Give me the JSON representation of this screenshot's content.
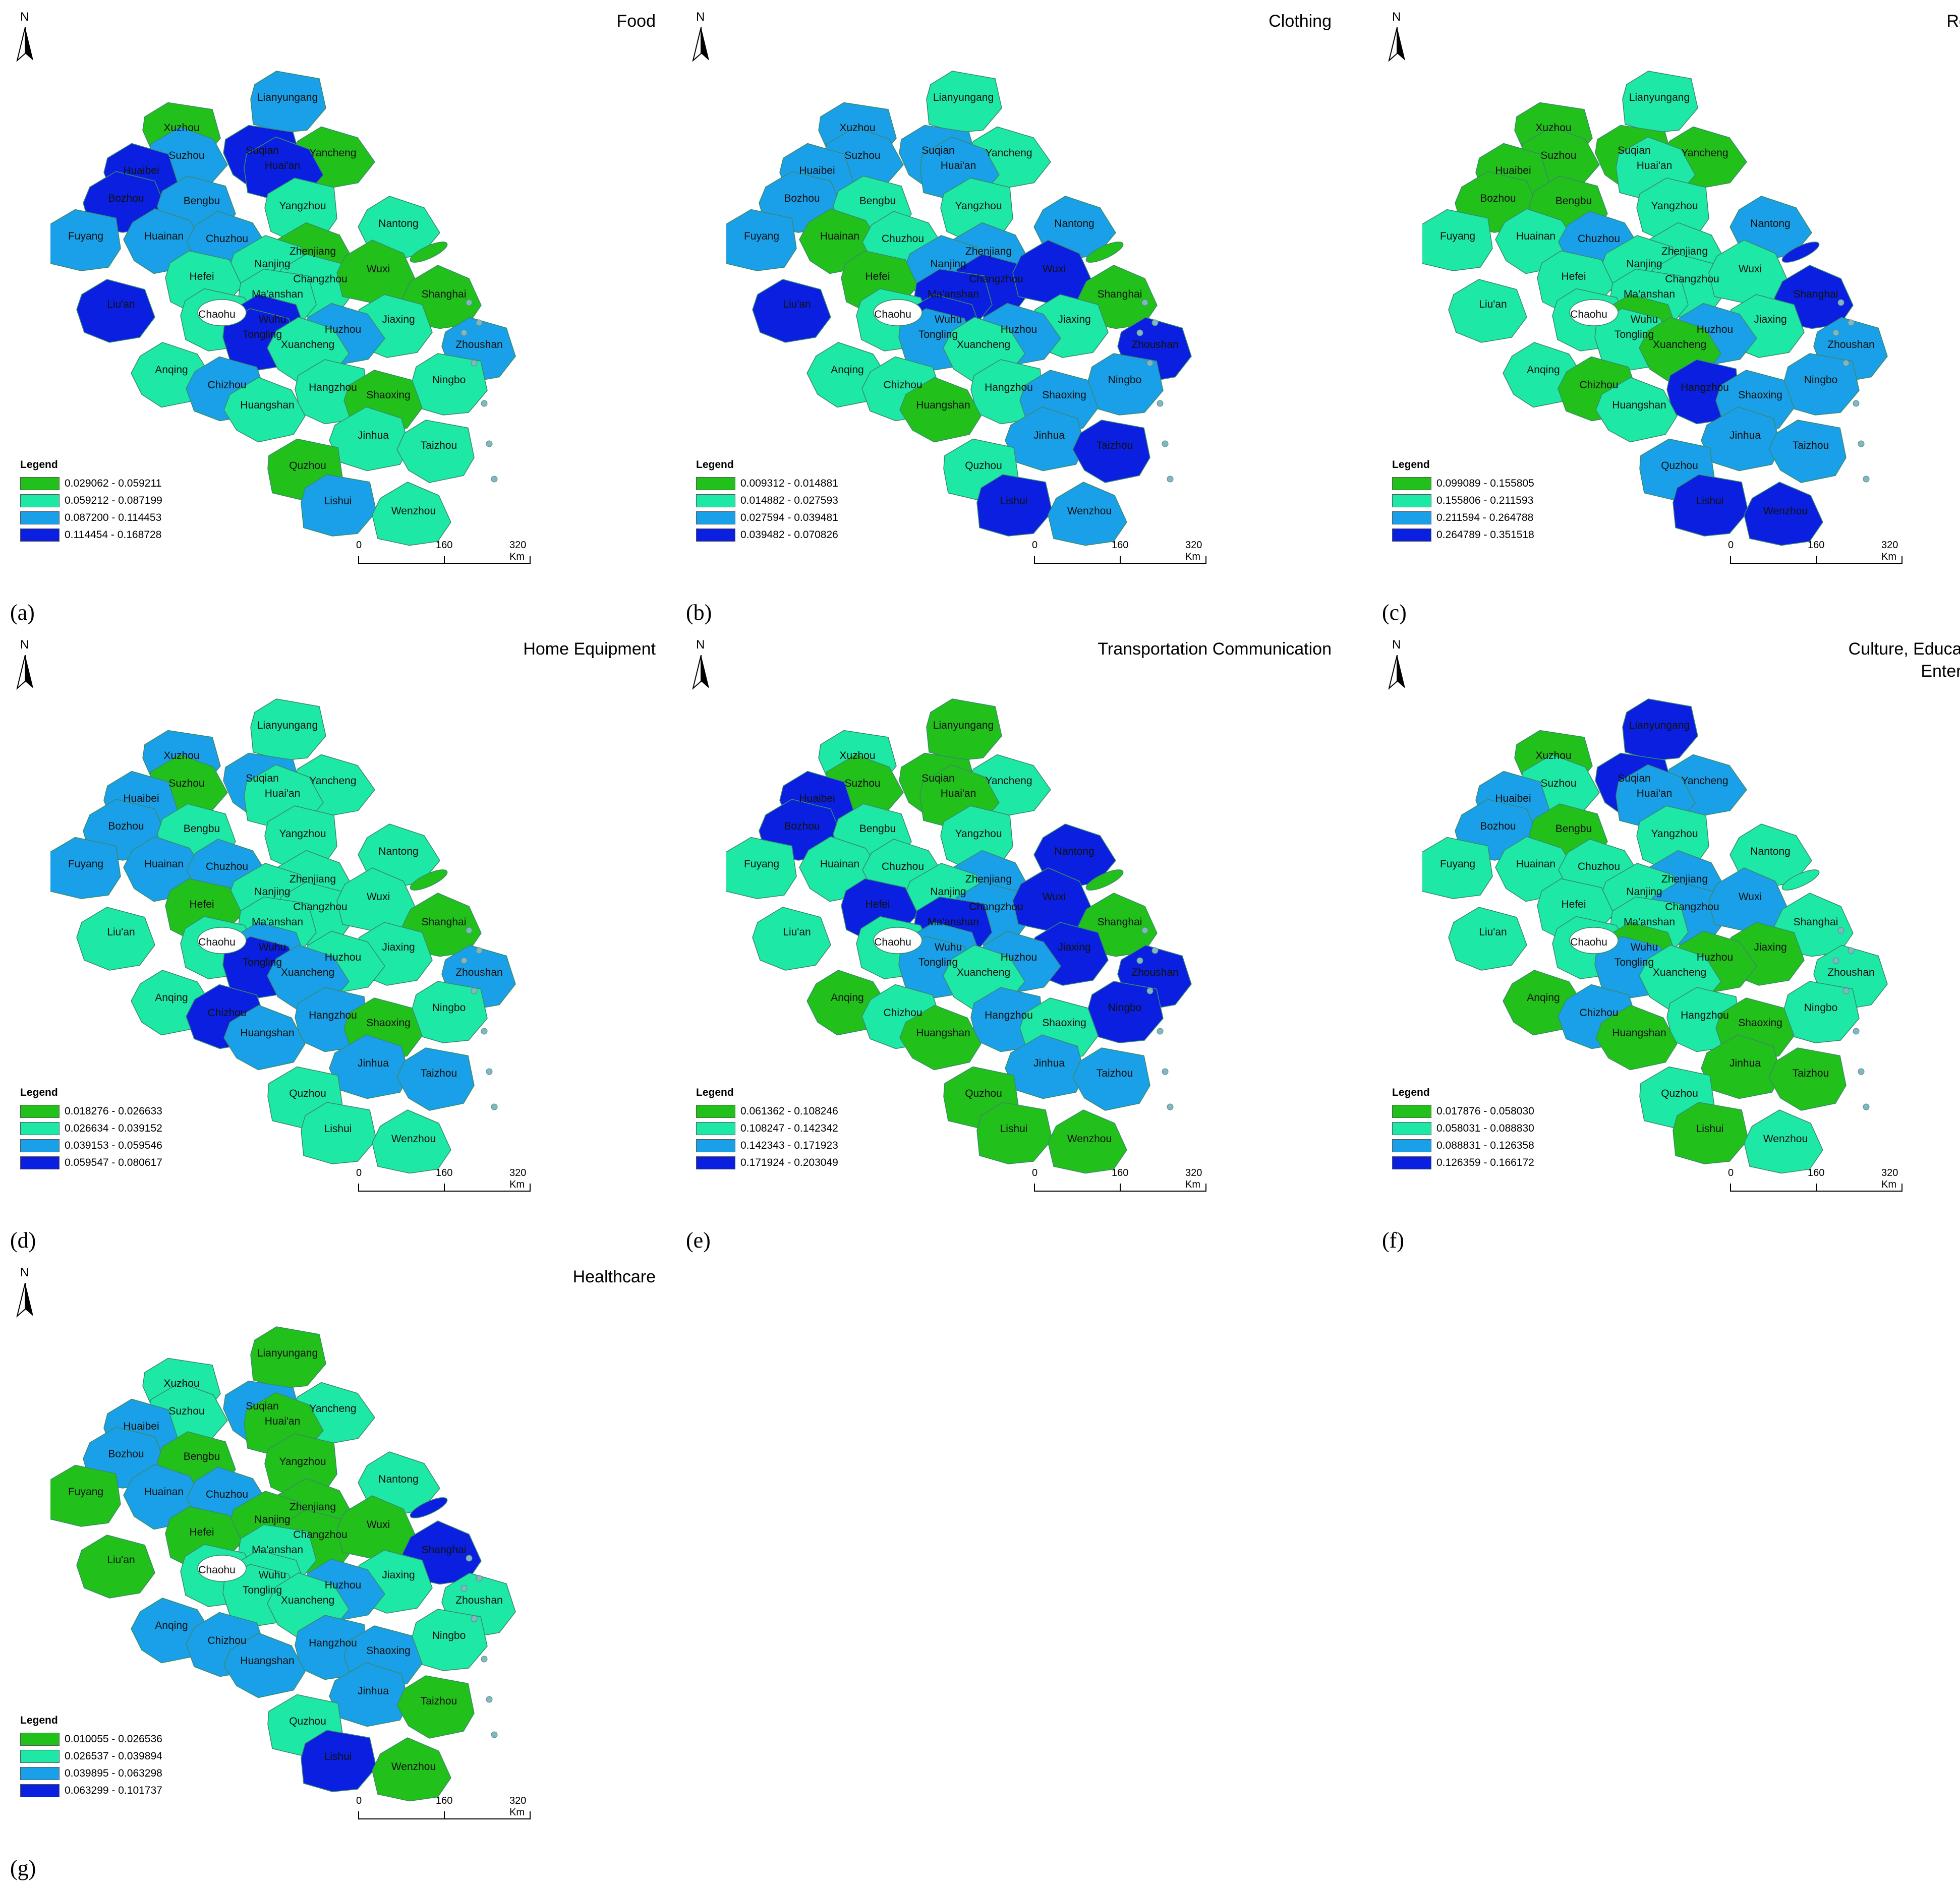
{
  "colors": {
    "c1": "#22c01b",
    "c2": "#1ee8a6",
    "c3": "#1aa0e8",
    "c4": "#0a1fe0",
    "outline": "#3a8a6a",
    "water": "#ffffff"
  },
  "north_label": "N",
  "legend_title": "Legend",
  "scale": {
    "t0": "0",
    "t1": "160",
    "t2": "320 Km"
  },
  "city_names": [
    "Lianyungang",
    "Xuzhou",
    "Suqian",
    "Yancheng",
    "Suzhou",
    "Huai'an",
    "Huaibei",
    "Bozhou",
    "Bengbu",
    "Yangzhou",
    "Nantong",
    "Fuyang",
    "Huainan",
    "Chuzhou",
    "Zhenjiang",
    "Nanjing",
    "Hefei",
    "Changzhou",
    "Wuxi",
    "Shanghai",
    "Ma'anshan",
    "Liu'an",
    "Chaohu",
    "Wuhu",
    "Jiaxing",
    "Huzhou",
    "Tongling",
    "Xuancheng",
    "Zhoushan",
    "Anqing",
    "Chizhou",
    "Hangzhou",
    "Ningbo",
    "Shaoxing",
    "Huangshan",
    "Jinhua",
    "Taizhou",
    "Quzhou",
    "Lishui",
    "Wenzhou"
  ],
  "panels": [
    {
      "id": "a",
      "label": "(a)",
      "title": "Food",
      "legend": [
        "0.029062 - 0.059211",
        "0.059212 - 0.087199",
        "0.087200 - 0.114453",
        "0.114454 - 0.168728"
      ],
      "classes": {
        "Lianyungang": 3,
        "Xuzhou": 1,
        "Suqian": 4,
        "Yancheng": 1,
        "Suzhou": 3,
        "Huai'an": 4,
        "Huaibei": 4,
        "Bozhou": 4,
        "Bengbu": 3,
        "Yangzhou": 2,
        "Nantong": 2,
        "Fuyang": 3,
        "Huainan": 3,
        "Chuzhou": 3,
        "Zhenjiang": 1,
        "Nanjing": 2,
        "Hefei": 2,
        "Changzhou": 2,
        "Wuxi": 1,
        "Shanghai": 1,
        "Ma'anshan": 2,
        "Liu'an": 4,
        "Chaohu": 2,
        "Wuhu": 4,
        "Jiaxing": 2,
        "Huzhou": 3,
        "Tongling": 4,
        "Xuancheng": 2,
        "Zhoushan": 3,
        "Anqing": 2,
        "Chizhou": 3,
        "Hangzhou": 2,
        "Ningbo": 2,
        "Shaoxing": 1,
        "Huangshan": 2,
        "Jinhua": 2,
        "Taizhou": 2,
        "Quzhou": 1,
        "Lishui": 3,
        "Wenzhou": 2
      }
    },
    {
      "id": "b",
      "label": "(b)",
      "title": "Clothing",
      "legend": [
        "0.009312 - 0.014881",
        "0.014882 - 0.027593",
        "0.027594 - 0.039481",
        "0.039482 - 0.070826"
      ],
      "classes": {
        "Lianyungang": 2,
        "Xuzhou": 3,
        "Suqian": 3,
        "Yancheng": 2,
        "Suzhou": 3,
        "Huai'an": 3,
        "Huaibei": 3,
        "Bozhou": 3,
        "Bengbu": 2,
        "Yangzhou": 2,
        "Nantong": 3,
        "Fuyang": 3,
        "Huainan": 1,
        "Chuzhou": 2,
        "Zhenjiang": 3,
        "Nanjing": 3,
        "Hefei": 1,
        "Changzhou": 4,
        "Wuxi": 4,
        "Shanghai": 1,
        "Ma'anshan": 4,
        "Liu'an": 4,
        "Chaohu": 2,
        "Wuhu": 4,
        "Jiaxing": 2,
        "Huzhou": 3,
        "Tongling": 3,
        "Xuancheng": 2,
        "Zhoushan": 4,
        "Anqing": 2,
        "Chizhou": 2,
        "Hangzhou": 2,
        "Ningbo": 3,
        "Shaoxing": 3,
        "Huangshan": 1,
        "Jinhua": 3,
        "Taizhou": 4,
        "Quzhou": 2,
        "Lishui": 4,
        "Wenzhou": 3
      }
    },
    {
      "id": "c",
      "label": "(c)",
      "title": "Residence",
      "legend": [
        "0.099089 - 0.155805",
        "0.155806 - 0.211593",
        "0.211594 - 0.264788",
        "0.264789 - 0.351518"
      ],
      "classes": {
        "Lianyungang": 2,
        "Xuzhou": 1,
        "Suqian": 1,
        "Yancheng": 1,
        "Suzhou": 1,
        "Huai'an": 2,
        "Huaibei": 1,
        "Bozhou": 1,
        "Bengbu": 1,
        "Yangzhou": 2,
        "Nantong": 3,
        "Fuyang": 2,
        "Huainan": 2,
        "Chuzhou": 3,
        "Zhenjiang": 2,
        "Nanjing": 2,
        "Hefei": 2,
        "Changzhou": 2,
        "Wuxi": 2,
        "Shanghai": 4,
        "Ma'anshan": 2,
        "Liu'an": 2,
        "Chaohu": 2,
        "Wuhu": 1,
        "Jiaxing": 2,
        "Huzhou": 3,
        "Tongling": 2,
        "Xuancheng": 1,
        "Zhoushan": 3,
        "Anqing": 2,
        "Chizhou": 1,
        "Hangzhou": 4,
        "Ningbo": 3,
        "Shaoxing": 3,
        "Huangshan": 2,
        "Jinhua": 3,
        "Taizhou": 3,
        "Quzhou": 3,
        "Lishui": 4,
        "Wenzhou": 4
      }
    },
    {
      "id": "d",
      "label": "(d)",
      "title": "Home Equipment",
      "legend": [
        "0.018276 - 0.026633",
        "0.026634 - 0.039152",
        "0.039153 - 0.059546",
        "0.059547 - 0.080617"
      ],
      "classes": {
        "Lianyungang": 2,
        "Xuzhou": 3,
        "Suqian": 3,
        "Yancheng": 2,
        "Suzhou": 1,
        "Huai'an": 2,
        "Huaibei": 3,
        "Bozhou": 3,
        "Bengbu": 2,
        "Yangzhou": 2,
        "Nantong": 2,
        "Fuyang": 3,
        "Huainan": 3,
        "Chuzhou": 3,
        "Zhenjiang": 2,
        "Nanjing": 2,
        "Hefei": 1,
        "Changzhou": 2,
        "Wuxi": 2,
        "Shanghai": 1,
        "Ma'anshan": 2,
        "Liu'an": 2,
        "Chaohu": 2,
        "Wuhu": 3,
        "Jiaxing": 2,
        "Huzhou": 2,
        "Tongling": 4,
        "Xuancheng": 3,
        "Zhoushan": 3,
        "Anqing": 2,
        "Chizhou": 4,
        "Hangzhou": 3,
        "Ningbo": 2,
        "Shaoxing": 1,
        "Huangshan": 3,
        "Jinhua": 3,
        "Taizhou": 3,
        "Quzhou": 2,
        "Lishui": 2,
        "Wenzhou": 2
      }
    },
    {
      "id": "e",
      "label": "(e)",
      "title": "Transportation Communication",
      "legend": [
        "0.061362 - 0.108246",
        "0.108247 - 0.142342",
        "0.142343 - 0.171923",
        "0.171924 - 0.203049"
      ],
      "classes": {
        "Lianyungang": 1,
        "Xuzhou": 2,
        "Suqian": 1,
        "Yancheng": 2,
        "Suzhou": 1,
        "Huai'an": 1,
        "Huaibei": 4,
        "Bozhou": 4,
        "Bengbu": 2,
        "Yangzhou": 2,
        "Nantong": 4,
        "Fuyang": 2,
        "Huainan": 2,
        "Chuzhou": 2,
        "Zhenjiang": 3,
        "Nanjing": 2,
        "Hefei": 4,
        "Changzhou": 3,
        "Wuxi": 4,
        "Shanghai": 1,
        "Ma'anshan": 4,
        "Liu'an": 2,
        "Chaohu": 2,
        "Wuhu": 3,
        "Jiaxing": 4,
        "Huzhou": 3,
        "Tongling": 3,
        "Xuancheng": 2,
        "Zhoushan": 4,
        "Anqing": 1,
        "Chizhou": 2,
        "Hangzhou": 3,
        "Ningbo": 4,
        "Shaoxing": 2,
        "Huangshan": 1,
        "Jinhua": 3,
        "Taizhou": 3,
        "Quzhou": 1,
        "Lishui": 1,
        "Wenzhou": 1
      }
    },
    {
      "id": "f",
      "label": "(f)",
      "title": "Culture, Education, and Entertainment",
      "legend": [
        "0.017876 - 0.058030",
        "0.058031 - 0.088830",
        "0.088831 - 0.126358",
        "0.126359 - 0.166172"
      ],
      "classes": {
        "Lianyungang": 4,
        "Xuzhou": 1,
        "Suqian": 4,
        "Yancheng": 3,
        "Suzhou": 2,
        "Huai'an": 3,
        "Huaibei": 3,
        "Bozhou": 3,
        "Bengbu": 1,
        "Yangzhou": 2,
        "Nantong": 2,
        "Fuyang": 2,
        "Huainan": 2,
        "Chuzhou": 2,
        "Zhenjiang": 3,
        "Nanjing": 2,
        "Hefei": 2,
        "Changzhou": 3,
        "Wuxi": 3,
        "Shanghai": 2,
        "Ma'anshan": 2,
        "Liu'an": 2,
        "Chaohu": 2,
        "Wuhu": 1,
        "Jiaxing": 1,
        "Huzhou": 1,
        "Tongling": 3,
        "Xuancheng": 2,
        "Zhoushan": 2,
        "Anqing": 1,
        "Chizhou": 3,
        "Hangzhou": 2,
        "Ningbo": 2,
        "Shaoxing": 1,
        "Huangshan": 1,
        "Jinhua": 1,
        "Taizhou": 1,
        "Quzhou": 2,
        "Lishui": 1,
        "Wenzhou": 2
      }
    },
    {
      "id": "g",
      "label": "(g)",
      "title": "Healthcare",
      "legend": [
        "0.010055 - 0.026536",
        "0.026537 - 0.039894",
        "0.039895 - 0.063298",
        "0.063299 - 0.101737"
      ],
      "classes": {
        "Lianyungang": 1,
        "Xuzhou": 2,
        "Suqian": 3,
        "Yancheng": 2,
        "Suzhou": 2,
        "Huai'an": 1,
        "Huaibei": 3,
        "Bozhou": 3,
        "Bengbu": 1,
        "Yangzhou": 1,
        "Nantong": 2,
        "Fuyang": 1,
        "Huainan": 3,
        "Chuzhou": 3,
        "Zhenjiang": 1,
        "Nanjing": 1,
        "Hefei": 1,
        "Changzhou": 1,
        "Wuxi": 1,
        "Shanghai": 4,
        "Ma'anshan": 2,
        "Liu'an": 1,
        "Chaohu": 2,
        "Wuhu": 2,
        "Jiaxing": 2,
        "Huzhou": 3,
        "Tongling": 2,
        "Xuancheng": 2,
        "Zhoushan": 2,
        "Anqing": 3,
        "Chizhou": 3,
        "Hangzhou": 3,
        "Ningbo": 2,
        "Shaoxing": 3,
        "Huangshan": 3,
        "Jinhua": 3,
        "Taizhou": 1,
        "Quzhou": 2,
        "Lishui": 4,
        "Wenzhou": 1
      }
    }
  ]
}
